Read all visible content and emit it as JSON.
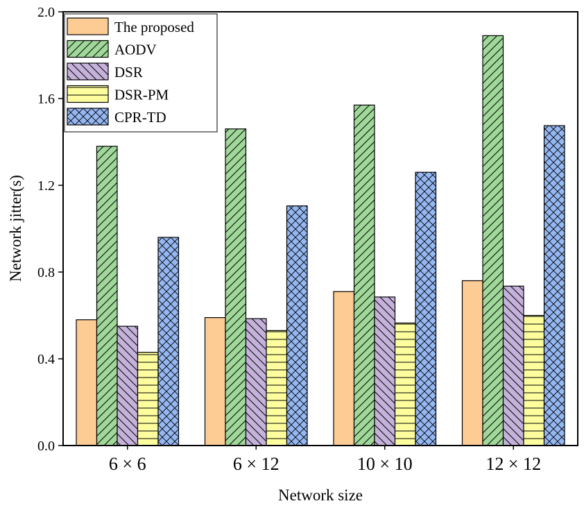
{
  "chart_data": {
    "type": "bar",
    "title": "",
    "xlabel": "Network size",
    "ylabel": "Network jitter(s)",
    "ylim": [
      0,
      2.0
    ],
    "yticks": [
      "0.0",
      "0.4",
      "0.8",
      "1.2",
      "1.6",
      "2.0"
    ],
    "categories": [
      "6 × 6",
      "6 × 12",
      "10 × 10",
      "12 × 12"
    ],
    "legend_position": "top-left",
    "series": [
      {
        "name": "The proposed",
        "values": [
          0.58,
          0.59,
          0.71,
          0.76
        ],
        "color": "#FDCB94",
        "pattern": "none"
      },
      {
        "name": "AODV",
        "values": [
          1.38,
          1.46,
          1.57,
          1.89
        ],
        "color": "#A0D89A",
        "pattern": "forward-diagonal"
      },
      {
        "name": "DSR",
        "values": [
          0.55,
          0.585,
          0.685,
          0.735
        ],
        "color": "#C5B2DB",
        "pattern": "back-diagonal"
      },
      {
        "name": "DSR-PM",
        "values": [
          0.43,
          0.53,
          0.565,
          0.6
        ],
        "color": "#FDFD9E",
        "pattern": "horizontal"
      },
      {
        "name": "CPR-TD",
        "values": [
          0.96,
          1.105,
          1.26,
          1.475
        ],
        "color": "#95B7F2",
        "pattern": "crosshatch"
      }
    ]
  }
}
